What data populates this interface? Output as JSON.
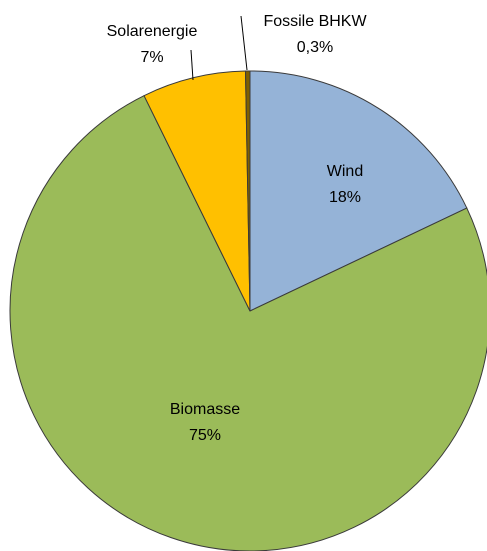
{
  "chart_data": {
    "type": "pie",
    "categories": [
      "Wind",
      "Biomasse",
      "Solarenergie",
      "Fossile BHKW"
    ],
    "values": [
      18,
      75,
      7,
      0.3
    ],
    "value_labels": [
      "18%",
      "75%",
      "7%",
      "0,3%"
    ],
    "colors": [
      "#95b3d7",
      "#9bbb59",
      "#ffc000",
      "#7f6000"
    ]
  }
}
